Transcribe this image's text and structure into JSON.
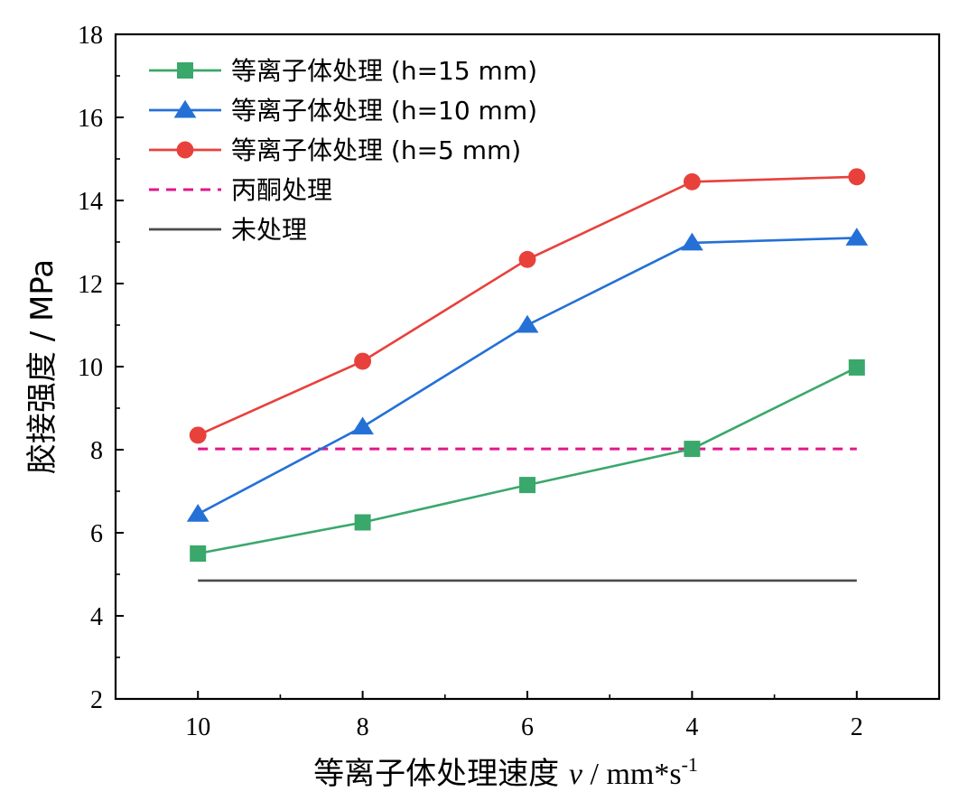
{
  "chart_data": {
    "type": "line",
    "xlabel": "等离子体处理速度 v / mm*s-1",
    "xlabel_parts": {
      "main": "等离子体处理速度 ",
      "var": "v",
      "unit": " / mm*s",
      "sup": "-1"
    },
    "ylabel": "胶接强度 / MPa",
    "x_categories": [
      "10",
      "8",
      "6",
      "4",
      "2"
    ],
    "xlim": [
      11,
      1
    ],
    "x_reversed": true,
    "ylim": [
      2,
      18
    ],
    "y_ticks": [
      2,
      4,
      6,
      8,
      10,
      12,
      14,
      16,
      18
    ],
    "grid": false,
    "legend_position": "top-left",
    "series": [
      {
        "name": "等离子体处理 (h=15 mm)",
        "color": "#3aa86b",
        "marker": "square",
        "dash": "solid",
        "x": [
          10,
          8,
          6,
          4,
          2
        ],
        "y": [
          5.5,
          6.25,
          7.15,
          8.02,
          9.98
        ]
      },
      {
        "name": "等离子体处理 (h=10 mm)",
        "color": "#2470d6",
        "marker": "triangle",
        "dash": "solid",
        "x": [
          10,
          8,
          6,
          4,
          2
        ],
        "y": [
          6.45,
          8.55,
          11.0,
          12.98,
          13.1
        ]
      },
      {
        "name": "等离子体处理 (h=5 mm)",
        "color": "#e8413c",
        "marker": "circle",
        "dash": "solid",
        "x": [
          10,
          8,
          6,
          4,
          2
        ],
        "y": [
          8.35,
          10.13,
          12.58,
          14.45,
          14.57
        ]
      },
      {
        "name": "丙酮处理",
        "color": "#e0188c",
        "marker": "none",
        "dash": "dashed",
        "x": [
          10,
          2
        ],
        "y": [
          8.02,
          8.02
        ]
      },
      {
        "name": "未处理",
        "color": "#4a4a4a",
        "marker": "none",
        "dash": "solid",
        "x": [
          10,
          2
        ],
        "y": [
          4.85,
          4.85
        ]
      }
    ]
  }
}
